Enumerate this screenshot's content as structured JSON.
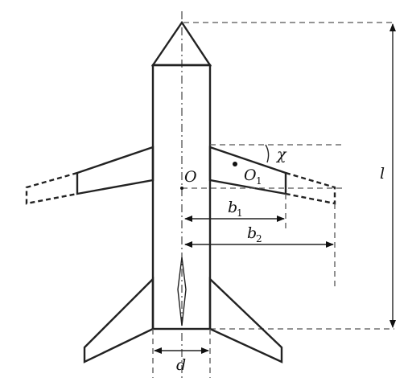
{
  "labels": {
    "length": "l",
    "origin": "O",
    "wing_point_main": "O",
    "wing_point_sub": "1",
    "sweep_angle": "χ",
    "b1_main": "b",
    "b1_sub": "1",
    "b2_main": "b",
    "b2_sub": "2",
    "diameter": "d"
  }
}
